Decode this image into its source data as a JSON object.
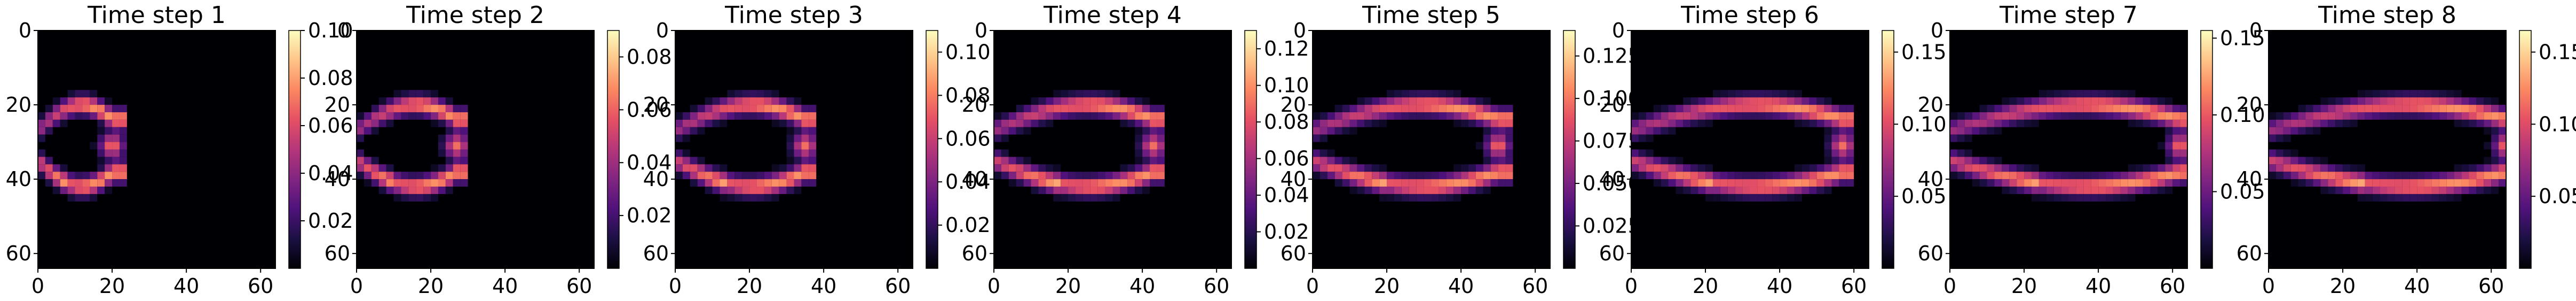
{
  "chart_data": {
    "type": "heatmap",
    "colormap": "magma",
    "colors": {
      "background_field": "#000004",
      "ramp": [
        "#000004",
        "#1c1044",
        "#4f127b",
        "#812581",
        "#b5367a",
        "#e55064",
        "#fb8761",
        "#fec488",
        "#fcfdbf"
      ]
    },
    "grid": false,
    "plume": {
      "x_start": 0,
      "y_center": 31,
      "band_width": 3
    },
    "panels": [
      {
        "title": "Time step 1",
        "x_ticks": [
          0,
          20,
          40,
          60
        ],
        "y_ticks": [
          0,
          20,
          40,
          60
        ],
        "colorbar": {
          "min": 0,
          "max": 0.1,
          "ticks": [
            "0.02",
            "0.04",
            "0.06",
            "0.08",
            "0.10"
          ],
          "tick_values": [
            0.02,
            0.04,
            0.06,
            0.08,
            0.1
          ]
        },
        "plume_front_x": 20
      },
      {
        "title": "Time step 2",
        "x_ticks": [
          0,
          20,
          40,
          60
        ],
        "y_ticks": [
          0,
          20,
          40,
          60
        ],
        "colorbar": {
          "min": 0,
          "max": 0.09,
          "ticks": [
            "0.02",
            "0.04",
            "0.06",
            "0.08"
          ],
          "tick_values": [
            0.02,
            0.04,
            0.06,
            0.08
          ]
        },
        "plume_front_x": 27
      },
      {
        "title": "Time step 3",
        "x_ticks": [
          0,
          20,
          40,
          60
        ],
        "y_ticks": [
          0,
          20,
          40,
          60
        ],
        "colorbar": {
          "min": 0,
          "max": 0.11,
          "ticks": [
            "0.02",
            "0.04",
            "0.06",
            "0.08",
            "0.10"
          ],
          "tick_values": [
            0.02,
            0.04,
            0.06,
            0.08,
            0.1
          ]
        },
        "plume_front_x": 35
      },
      {
        "title": "Time step 4",
        "x_ticks": [
          0,
          20,
          40,
          60
        ],
        "y_ticks": [
          0,
          20,
          40,
          60
        ],
        "colorbar": {
          "min": 0,
          "max": 0.13,
          "ticks": [
            "0.02",
            "0.04",
            "0.06",
            "0.08",
            "0.10",
            "0.12"
          ],
          "tick_values": [
            0.02,
            0.04,
            0.06,
            0.08,
            0.1,
            0.12
          ]
        },
        "plume_front_x": 43
      },
      {
        "title": "Time step 5",
        "x_ticks": [
          0,
          20,
          40,
          60
        ],
        "y_ticks": [
          0,
          20,
          40,
          60
        ],
        "colorbar": {
          "min": 0,
          "max": 0.14,
          "ticks": [
            "0.025",
            "0.050",
            "0.075",
            "0.100",
            "0.125"
          ],
          "tick_values": [
            0.025,
            0.05,
            0.075,
            0.1,
            0.125
          ]
        },
        "plume_front_x": 50
      },
      {
        "title": "Time step 6",
        "x_ticks": [
          0,
          20,
          40,
          60
        ],
        "y_ticks": [
          0,
          20,
          40,
          60
        ],
        "colorbar": {
          "min": 0,
          "max": 0.165,
          "ticks": [
            "0.05",
            "0.10",
            "0.15"
          ],
          "tick_values": [
            0.05,
            0.1,
            0.15
          ]
        },
        "plume_front_x": 57
      },
      {
        "title": "Time step 7",
        "x_ticks": [
          0,
          20,
          40,
          60
        ],
        "y_ticks": [
          0,
          20,
          40,
          60
        ],
        "colorbar": {
          "min": 0,
          "max": 0.155,
          "ticks": [
            "0.05",
            "0.10",
            "0.15"
          ],
          "tick_values": [
            0.05,
            0.1,
            0.15
          ]
        },
        "plume_front_x": 62
      },
      {
        "title": "Time step 8",
        "x_ticks": [
          0,
          20,
          40,
          60
        ],
        "y_ticks": [
          0,
          20,
          40,
          60
        ],
        "colorbar": {
          "min": 0,
          "max": 0.165,
          "ticks": [
            "0.05",
            "0.10",
            "0.15"
          ],
          "tick_values": [
            0.05,
            0.1,
            0.15
          ]
        },
        "plume_front_x": 64
      }
    ]
  }
}
